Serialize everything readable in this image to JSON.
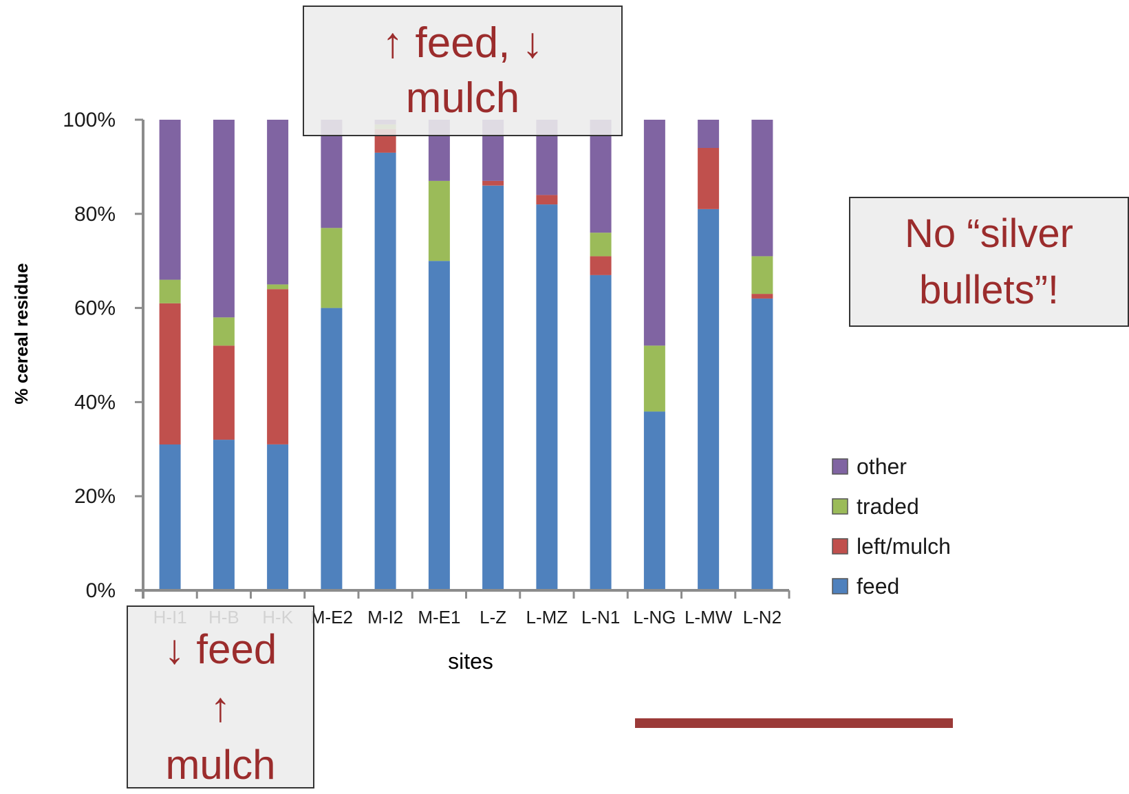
{
  "chart_data": {
    "type": "bar",
    "stacked": true,
    "categories": [
      "H-I1",
      "H-B",
      "H-K",
      "M-E2",
      "M-I2",
      "M-E1",
      "L-Z",
      "L-MZ",
      "L-N1",
      "L-NG",
      "L-MW",
      "L-N2"
    ],
    "series": [
      {
        "name": "feed",
        "color": "#4f81bd",
        "values": [
          31,
          32,
          31,
          60,
          93,
          70,
          86,
          82,
          67,
          38,
          81,
          62
        ]
      },
      {
        "name": "left/mulch",
        "color": "#c0504d",
        "values": [
          30,
          20,
          33,
          0,
          5,
          0,
          1,
          2,
          4,
          0,
          13,
          1
        ]
      },
      {
        "name": "traded",
        "color": "#9bbb59",
        "values": [
          5,
          6,
          1,
          17,
          1,
          17,
          0,
          0,
          5,
          14,
          0,
          8
        ]
      },
      {
        "name": "other",
        "color": "#8064a2",
        "values": [
          34,
          42,
          35,
          23,
          1,
          13,
          13,
          16,
          24,
          48,
          6,
          29
        ]
      }
    ],
    "xlabel": "sites",
    "ylabel": "% cereal residue",
    "ylim": [
      0,
      100
    ],
    "yticks": [
      "0%",
      "20%",
      "40%",
      "60%",
      "80%",
      "100%"
    ],
    "grid": false,
    "legend": {
      "placement": "right",
      "order": [
        "other",
        "traded",
        "left/mulch",
        "feed"
      ]
    },
    "annotations": {
      "top": "↑ feed, ↓\nmulch",
      "right": "No “silver\nbullets”!",
      "bottom": "↓ feed\n↑\nmulch"
    }
  },
  "colors": {
    "callout_text": "#9b2c2c",
    "axis": "#8c8c8c",
    "decor_line": "#9b3a38"
  }
}
